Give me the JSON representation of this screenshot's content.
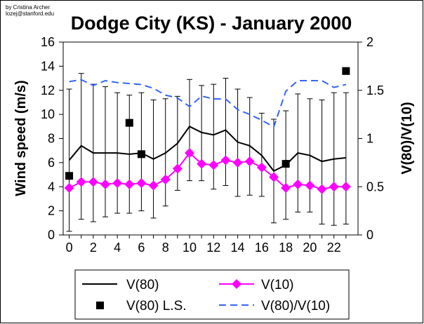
{
  "credit": {
    "line1": "by Cristina Archer",
    "line2": "lozej@stanford.edu"
  },
  "colors": {
    "v80": "#000000",
    "v10": "#ff00ff",
    "ls": "#000000",
    "ratio": "#3366ff",
    "errorbar": "#000000"
  },
  "chart_data": {
    "type": "line",
    "title": "Dodge City (KS) - January 2000",
    "xlabel": "",
    "ylabel": "Wind speed (m/s)",
    "y2label": "V(80)/V(10)",
    "xlim": [
      -0.5,
      24
    ],
    "ylim": [
      0,
      16
    ],
    "y2lim": [
      0,
      2
    ],
    "x_ticks": [
      0,
      2,
      4,
      6,
      8,
      10,
      12,
      14,
      16,
      18,
      20,
      22
    ],
    "y_ticks": [
      0,
      2,
      4,
      6,
      8,
      10,
      12,
      14,
      16
    ],
    "y2_ticks": [
      "0",
      "0.5",
      "1",
      "1.5",
      "2"
    ],
    "y2_tick_values": [
      0,
      0.5,
      1,
      1.5,
      2
    ],
    "grid": false,
    "legend_position": "bottom",
    "x": [
      0,
      1,
      2,
      3,
      4,
      5,
      6,
      7,
      8,
      9,
      10,
      11,
      12,
      13,
      14,
      15,
      16,
      17,
      18,
      19,
      20,
      21,
      22,
      23
    ],
    "series": [
      {
        "name": "V(80)",
        "axis": "left",
        "style": "solid",
        "values": [
          6.2,
          7.4,
          6.8,
          6.8,
          6.8,
          6.7,
          6.8,
          6.3,
          6.8,
          7.6,
          9.0,
          8.5,
          8.3,
          8.7,
          7.7,
          7.4,
          6.6,
          5.3,
          5.8,
          6.8,
          6.6,
          6.1,
          6.3,
          6.4
        ],
        "error_low": [
          0.3,
          1.3,
          1.1,
          1.5,
          1.8,
          1.8,
          2.0,
          1.4,
          2.4,
          3.7,
          4.5,
          4.5,
          3.8,
          4.1,
          3.2,
          3.3,
          3.2,
          1.0,
          1.3,
          1.9,
          1.9,
          0.9,
          0.8,
          0.9
        ],
        "error_high": [
          12.1,
          13.4,
          12.5,
          12.3,
          11.8,
          11.6,
          11.8,
          11.2,
          11.3,
          11.5,
          12.9,
          12.4,
          12.5,
          13.0,
          12.1,
          11.4,
          10.1,
          9.6,
          10.3,
          11.7,
          11.3,
          11.2,
          11.8,
          11.8
        ]
      },
      {
        "name": "V(10)",
        "axis": "left",
        "style": "diamond-line",
        "values": [
          3.9,
          4.4,
          4.4,
          4.2,
          4.3,
          4.2,
          4.3,
          4.1,
          4.6,
          5.5,
          6.8,
          5.9,
          5.8,
          6.2,
          6.0,
          6.1,
          5.6,
          4.8,
          3.9,
          4.2,
          4.1,
          3.8,
          4.0,
          4.0
        ]
      },
      {
        "name": "V(80) L.S.",
        "axis": "left",
        "style": "square-markers",
        "x": [
          0,
          5,
          6,
          18,
          23
        ],
        "values": [
          4.9,
          9.3,
          6.7,
          5.9,
          13.6
        ]
      },
      {
        "name": "V(80)/V(10)",
        "axis": "right",
        "style": "dashed",
        "values": [
          1.59,
          1.61,
          1.55,
          1.6,
          1.58,
          1.57,
          1.56,
          1.52,
          1.45,
          1.42,
          1.33,
          1.44,
          1.41,
          1.41,
          1.3,
          1.25,
          1.19,
          1.12,
          1.49,
          1.6,
          1.6,
          1.6,
          1.53,
          1.56
        ]
      }
    ]
  }
}
